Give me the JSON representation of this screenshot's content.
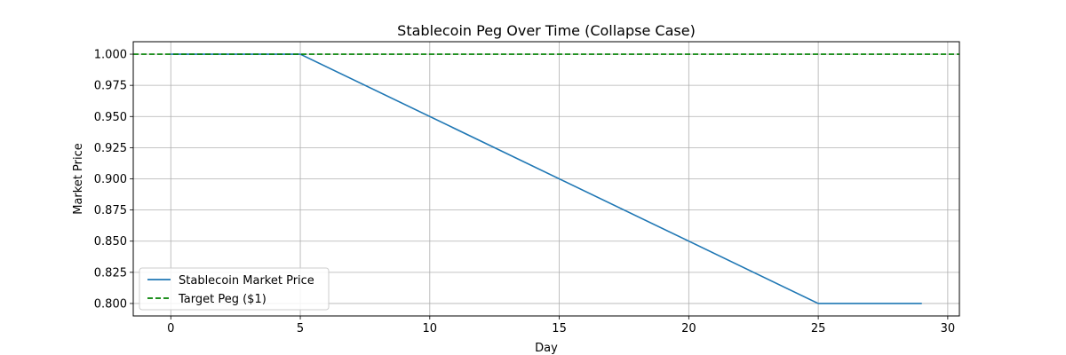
{
  "chart_data": {
    "type": "line",
    "title": "Stablecoin Peg Over Time (Collapse Case)",
    "xlabel": "Day",
    "ylabel": "Market Price",
    "xlim": [
      -1.45,
      30.45
    ],
    "ylim": [
      0.79,
      1.01
    ],
    "x_ticks": [
      0,
      5,
      10,
      15,
      20,
      25,
      30
    ],
    "y_ticks": [
      0.8,
      0.825,
      0.85,
      0.875,
      0.9,
      0.925,
      0.95,
      0.975,
      1.0
    ],
    "y_tick_labels": [
      "0.800",
      "0.825",
      "0.850",
      "0.875",
      "0.900",
      "0.925",
      "0.950",
      "0.975",
      "1.000"
    ],
    "grid": true,
    "legend_position": "lower-left",
    "series": [
      {
        "name": "Stablecoin Market Price",
        "color": "#1f77b4",
        "style": "solid",
        "x": [
          0,
          5,
          25,
          29
        ],
        "y": [
          1.0,
          1.0,
          0.8,
          0.8
        ]
      },
      {
        "name": "Target Peg ($1)",
        "color": "#008000",
        "style": "dashed",
        "hline": 1.0
      }
    ]
  }
}
